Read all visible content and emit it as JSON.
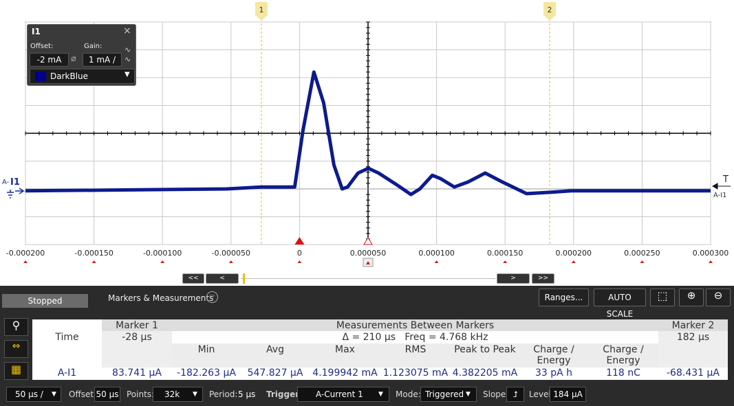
{
  "chart_data": {
    "type": "line",
    "x": [
      -0.0002,
      -5.3e-05,
      -2.8e-05,
      -3.5e-06,
      2.5e-06,
      1.05e-05,
      1.76e-05,
      2.51e-05,
      3.11e-05,
      3.51e-05,
      4.27e-05,
      5.02e-05,
      5.77e-05,
      7.03e-05,
      8.13e-05,
      8.78e-05,
      9.69e-05,
      0.0001029,
      0.000113,
      0.000123,
      0.0001355,
      0.000148,
      0.0001657,
      0.0001832,
      0.0001983,
      0.0003
    ],
    "series": [
      {
        "name": "A-I1",
        "color": "#0d1b8e",
        "values": [
          -0.07,
          0,
          0.07,
          0.07,
          2.1,
          4.2,
          3.09,
          0.86,
          0,
          0.07,
          0.57,
          0.74,
          0.57,
          0.17,
          -0.2,
          0,
          0.49,
          0.37,
          0.07,
          0.25,
          0.57,
          0.25,
          -0.17,
          -0.12,
          -0.07,
          -0.07
        ]
      }
    ],
    "xlim": [
      -0.0002,
      0.0003
    ],
    "xticks": [
      {
        "value": -0.0002,
        "label": "-0.000200"
      },
      {
        "value": -0.00015,
        "label": "-0.000150"
      },
      {
        "value": -0.0001,
        "label": "-0.000100"
      },
      {
        "value": -5e-05,
        "label": "-0.000050"
      },
      0,
      {
        "value": 5e-05,
        "label": "0.000050"
      },
      {
        "value": 0.0001,
        "label": "0.000100"
      },
      {
        "value": 0.00015,
        "label": "0.000150"
      },
      {
        "value": 0.0002,
        "label": "0.000200"
      },
      {
        "value": 0.00025,
        "label": "0.000250"
      },
      {
        "value": 0.0003,
        "label": "0.000300"
      }
    ],
    "ylim": [
      -2,
      6
    ],
    "yticks": [
      -2,
      -1,
      0,
      1,
      2,
      3,
      4,
      5,
      6
    ],
    "grid": true
  },
  "ui": {
    "markers": [
      "1",
      "2"
    ],
    "channel_panel": {
      "title": "I1",
      "offset_label": "Offset:",
      "gain_label": "Gain:",
      "offset": "-2 mA",
      "gain": "1 mA /",
      "color": "DarkBlue"
    },
    "channel_tag": {
      "prefix": "A-",
      "name": "I1"
    },
    "trigger_tag": "T",
    "scroll": [
      "<<",
      "<",
      ">",
      ">>"
    ],
    "status": "Stopped",
    "section": "Markers & Measurements",
    "ranges": "Ranges...",
    "autoscale": "AUTO SCALE",
    "table": {
      "header": [
        "Marker 1",
        "Measurements Between Markers",
        "Marker 2"
      ],
      "time_label": "Time",
      "marker1_time": "-28 µs",
      "between": "Δ = 210 µs   Freq = 4.768 kHz",
      "marker2_time": "182 µs",
      "columns": [
        "Min",
        "Avg",
        "Max",
        "RMS",
        "Peak to Peak",
        "Charge / Energy",
        "Charge / Energy"
      ],
      "row": [
        "A-I1",
        "83.741 µA",
        "-182.263 µA",
        "547.827 µA",
        "4.199942 mA",
        "1.123075 mA",
        "4.382205 mA",
        "33 pA h",
        "118 nC",
        "-68.431 µA"
      ]
    },
    "toolbar": {
      "timebase": "50 µs /",
      "offset_label": "Offset:",
      "offset": "50 µs",
      "points_label": "Points:",
      "points": "32k",
      "period_label": "Period:",
      "period": "5 µs",
      "trigger_label": "Trigger",
      "trigger": "A-Current 1",
      "mode_label": "Mode:",
      "mode": "Triggered",
      "slope_label": "Slope:",
      "level_label": "Level:",
      "level": "184 µA"
    }
  }
}
